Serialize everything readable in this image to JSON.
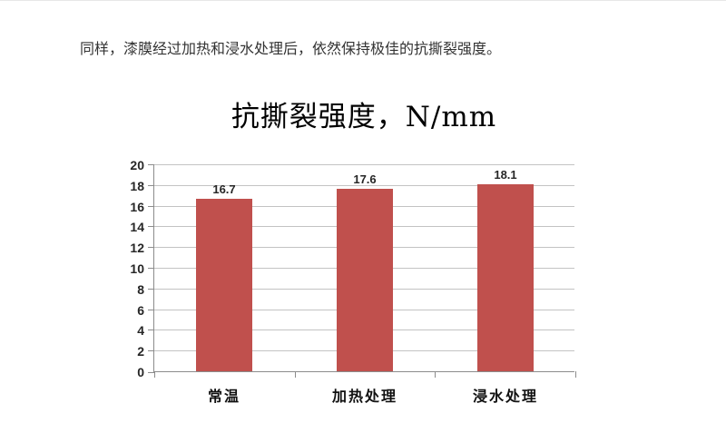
{
  "page": {
    "paragraph": "同样，漆膜经过加热和浸水处理后，依然保持极佳的抗撕裂强度。"
  },
  "chart_data": {
    "type": "bar",
    "title": "抗撕裂强度，N/mm",
    "categories": [
      "常温",
      "加热处理",
      "浸水处理"
    ],
    "values": [
      16.7,
      17.6,
      18.1
    ],
    "data_labels": [
      "16.7",
      "17.6",
      "18.1"
    ],
    "xlabel": "",
    "ylabel": "",
    "ylim": [
      0,
      20
    ],
    "yticks": [
      0,
      2,
      4,
      6,
      8,
      10,
      12,
      14,
      16,
      18,
      20
    ],
    "grid": true,
    "legend": false,
    "colors": {
      "bar": "#c0504d",
      "gridline": "#c3c3c3",
      "axis": "#8c8c8c",
      "tick_label": "#262626"
    }
  }
}
